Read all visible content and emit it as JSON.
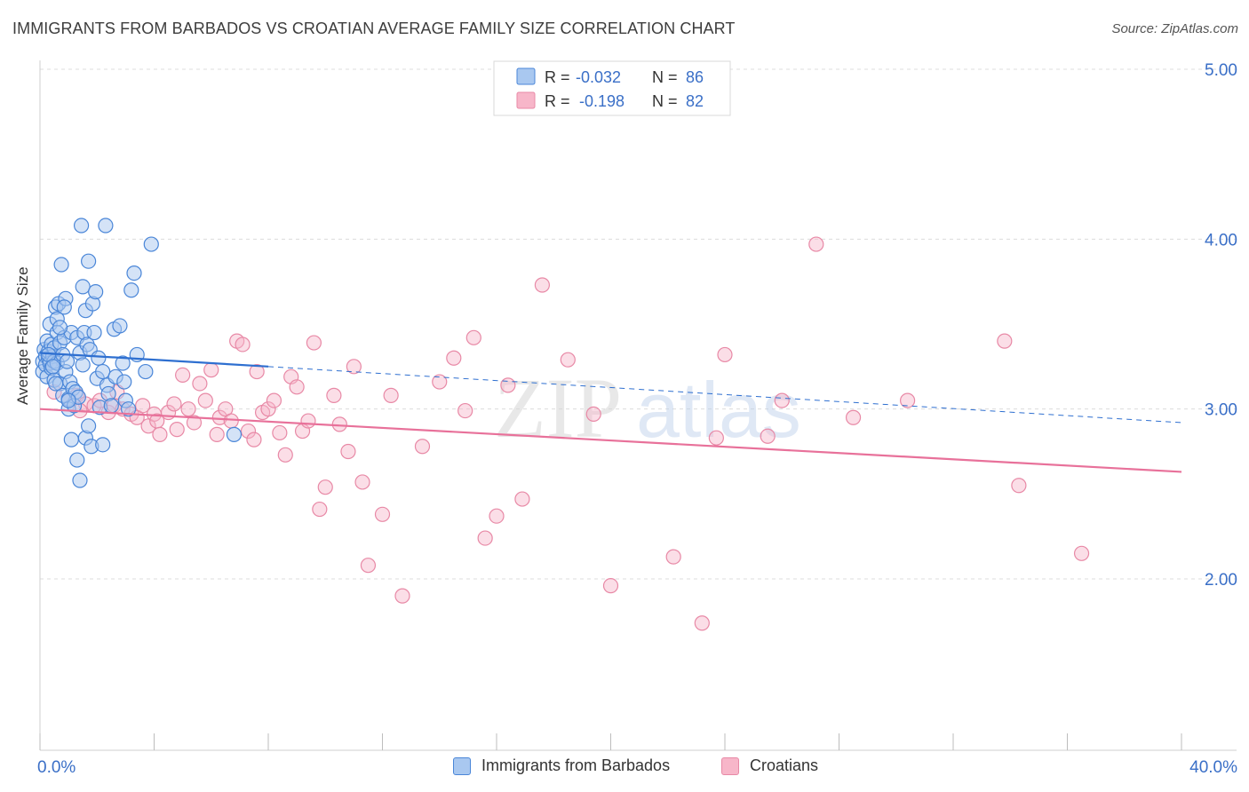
{
  "header": {
    "title": "IMMIGRANTS FROM BARBADOS VS CROATIAN AVERAGE FAMILY SIZE CORRELATION CHART",
    "source": "Source: ZipAtlas.com"
  },
  "watermark": {
    "zip": "ZIP",
    "atlas": "atlas"
  },
  "colors": {
    "blue_fill": "#a9c8f0",
    "blue_stroke": "#4a86d8",
    "blue_line": "#2e6fd0",
    "pink_fill": "#f7b6c9",
    "pink_stroke": "#e889a6",
    "pink_line": "#e8719a",
    "axis_text": "#3a6fc7",
    "grid": "#dcdcdc"
  },
  "legend_top": [
    {
      "r_label": "R =",
      "r_value": "-0.032",
      "n_label": "N =",
      "n_value": "86"
    },
    {
      "r_label": "R =",
      "r_value": "-0.198",
      "n_label": "N =",
      "n_value": "82"
    }
  ],
  "legend_bottom": [
    {
      "label": "Immigrants from Barbados"
    },
    {
      "label": "Croatians"
    }
  ],
  "chart_data": {
    "type": "scatter",
    "title": "IMMIGRANTS FROM BARBADOS VS CROATIAN AVERAGE FAMILY SIZE CORRELATION CHART",
    "xlabel": "",
    "ylabel": "Average Family Size",
    "xlim": [
      0,
      40
    ],
    "ylim": [
      1.0,
      5.2
    ],
    "x_tick_labels": [
      "0.0%",
      "40.0%"
    ],
    "y_ticks": [
      2.0,
      3.0,
      4.0,
      5.0
    ],
    "y_tick_labels": [
      "2.00",
      "3.00",
      "4.00",
      "5.00"
    ],
    "grid": true,
    "series": [
      {
        "name": "Immigrants from Barbados",
        "r": -0.032,
        "n": 86,
        "trend": {
          "x": [
            0,
            8
          ],
          "y": [
            3.33,
            3.25
          ],
          "dashed_to_x": 40,
          "dashed_to_y": 2.92
        },
        "points": [
          [
            0.1,
            3.28
          ],
          [
            0.1,
            3.22
          ],
          [
            0.15,
            3.35
          ],
          [
            0.2,
            3.31
          ],
          [
            0.2,
            3.26
          ],
          [
            0.25,
            3.4
          ],
          [
            0.25,
            3.19
          ],
          [
            0.3,
            3.3
          ],
          [
            0.3,
            3.34
          ],
          [
            0.35,
            3.27
          ],
          [
            0.35,
            3.5
          ],
          [
            0.4,
            3.24
          ],
          [
            0.4,
            3.38
          ],
          [
            0.45,
            3.31
          ],
          [
            0.5,
            3.36
          ],
          [
            0.5,
            3.28
          ],
          [
            0.5,
            3.17
          ],
          [
            0.55,
            3.6
          ],
          [
            0.6,
            3.53
          ],
          [
            0.6,
            3.45
          ],
          [
            0.6,
            3.27
          ],
          [
            0.65,
            3.62
          ],
          [
            0.7,
            3.39
          ],
          [
            0.7,
            3.15
          ],
          [
            0.75,
            3.85
          ],
          [
            0.8,
            3.32
          ],
          [
            0.8,
            3.08
          ],
          [
            0.85,
            3.42
          ],
          [
            0.9,
            3.65
          ],
          [
            0.9,
            3.22
          ],
          [
            0.95,
            3.28
          ],
          [
            1.0,
            3.06
          ],
          [
            1.0,
            3.0
          ],
          [
            1.05,
            3.16
          ],
          [
            1.1,
            3.45
          ],
          [
            1.1,
            2.82
          ],
          [
            1.15,
            3.12
          ],
          [
            1.2,
            3.02
          ],
          [
            1.25,
            3.1
          ],
          [
            1.3,
            3.42
          ],
          [
            1.3,
            2.7
          ],
          [
            1.35,
            3.07
          ],
          [
            1.4,
            3.33
          ],
          [
            1.4,
            2.58
          ],
          [
            1.45,
            4.08
          ],
          [
            1.5,
            3.72
          ],
          [
            1.5,
            3.26
          ],
          [
            1.55,
            3.45
          ],
          [
            1.6,
            3.58
          ],
          [
            1.6,
            2.83
          ],
          [
            1.65,
            3.38
          ],
          [
            1.7,
            3.87
          ],
          [
            1.7,
            2.9
          ],
          [
            1.75,
            3.35
          ],
          [
            1.8,
            2.78
          ],
          [
            1.85,
            3.62
          ],
          [
            1.9,
            3.45
          ],
          [
            1.95,
            3.69
          ],
          [
            2.0,
            3.18
          ],
          [
            2.05,
            3.3
          ],
          [
            2.1,
            3.01
          ],
          [
            2.2,
            3.22
          ],
          [
            2.3,
            4.08
          ],
          [
            2.35,
            3.14
          ],
          [
            2.4,
            3.09
          ],
          [
            2.5,
            3.02
          ],
          [
            2.6,
            3.47
          ],
          [
            2.65,
            3.19
          ],
          [
            2.8,
            3.49
          ],
          [
            2.9,
            3.27
          ],
          [
            2.95,
            3.16
          ],
          [
            3.0,
            3.05
          ],
          [
            3.1,
            3.0
          ],
          [
            3.2,
            3.7
          ],
          [
            3.3,
            3.8
          ],
          [
            3.4,
            3.32
          ],
          [
            3.7,
            3.22
          ],
          [
            3.9,
            3.97
          ],
          [
            6.8,
            2.85
          ],
          [
            0.3,
            3.32
          ],
          [
            0.45,
            3.25
          ],
          [
            0.55,
            3.15
          ],
          [
            0.7,
            3.48
          ],
          [
            0.85,
            3.6
          ],
          [
            1.0,
            3.05
          ],
          [
            2.2,
            2.79
          ]
        ]
      },
      {
        "name": "Croatians",
        "r": -0.198,
        "n": 82,
        "trend": {
          "x": [
            0,
            40
          ],
          "y": [
            3.0,
            2.63
          ]
        },
        "points": [
          [
            0.5,
            3.1
          ],
          [
            1.0,
            3.05
          ],
          [
            1.3,
            3.08
          ],
          [
            1.6,
            3.03
          ],
          [
            1.9,
            3.02
          ],
          [
            2.1,
            3.05
          ],
          [
            2.4,
            2.98
          ],
          [
            2.6,
            3.02
          ],
          [
            2.7,
            3.1
          ],
          [
            2.9,
            3.0
          ],
          [
            3.2,
            2.97
          ],
          [
            3.4,
            2.95
          ],
          [
            3.6,
            3.02
          ],
          [
            3.8,
            2.9
          ],
          [
            4.0,
            2.97
          ],
          [
            4.1,
            2.93
          ],
          [
            4.2,
            2.85
          ],
          [
            4.5,
            2.98
          ],
          [
            4.7,
            3.03
          ],
          [
            4.8,
            2.88
          ],
          [
            5.0,
            3.2
          ],
          [
            5.2,
            3.0
          ],
          [
            5.4,
            2.92
          ],
          [
            5.6,
            3.15
          ],
          [
            5.8,
            3.05
          ],
          [
            6.0,
            3.23
          ],
          [
            6.2,
            2.85
          ],
          [
            6.3,
            2.95
          ],
          [
            6.5,
            3.0
          ],
          [
            6.7,
            2.93
          ],
          [
            6.9,
            3.4
          ],
          [
            7.1,
            3.38
          ],
          [
            7.3,
            2.87
          ],
          [
            7.5,
            2.82
          ],
          [
            7.6,
            3.22
          ],
          [
            7.8,
            2.98
          ],
          [
            8.0,
            3.0
          ],
          [
            8.2,
            3.05
          ],
          [
            8.4,
            2.86
          ],
          [
            8.6,
            2.73
          ],
          [
            8.8,
            3.19
          ],
          [
            9.0,
            3.13
          ],
          [
            9.2,
            2.87
          ],
          [
            9.4,
            2.93
          ],
          [
            9.6,
            3.39
          ],
          [
            9.8,
            2.41
          ],
          [
            10.0,
            2.54
          ],
          [
            10.3,
            3.08
          ],
          [
            10.5,
            2.91
          ],
          [
            10.8,
            2.75
          ],
          [
            11.0,
            3.25
          ],
          [
            11.3,
            2.57
          ],
          [
            11.5,
            2.08
          ],
          [
            12.0,
            2.38
          ],
          [
            12.3,
            3.08
          ],
          [
            12.7,
            1.9
          ],
          [
            13.4,
            2.78
          ],
          [
            14.0,
            3.16
          ],
          [
            14.5,
            3.3
          ],
          [
            14.9,
            2.99
          ],
          [
            15.2,
            3.42
          ],
          [
            15.6,
            2.24
          ],
          [
            16.0,
            2.37
          ],
          [
            16.4,
            3.14
          ],
          [
            16.9,
            2.47
          ],
          [
            17.6,
            3.73
          ],
          [
            18.5,
            3.29
          ],
          [
            19.4,
            2.97
          ],
          [
            20.0,
            1.96
          ],
          [
            22.2,
            2.13
          ],
          [
            23.2,
            1.74
          ],
          [
            23.7,
            2.83
          ],
          [
            24.0,
            3.32
          ],
          [
            25.5,
            2.84
          ],
          [
            26.0,
            3.05
          ],
          [
            27.2,
            3.97
          ],
          [
            28.5,
            2.95
          ],
          [
            30.4,
            3.05
          ],
          [
            33.8,
            3.4
          ],
          [
            34.3,
            2.55
          ],
          [
            36.5,
            2.15
          ],
          [
            1.4,
            2.99
          ]
        ]
      }
    ]
  }
}
